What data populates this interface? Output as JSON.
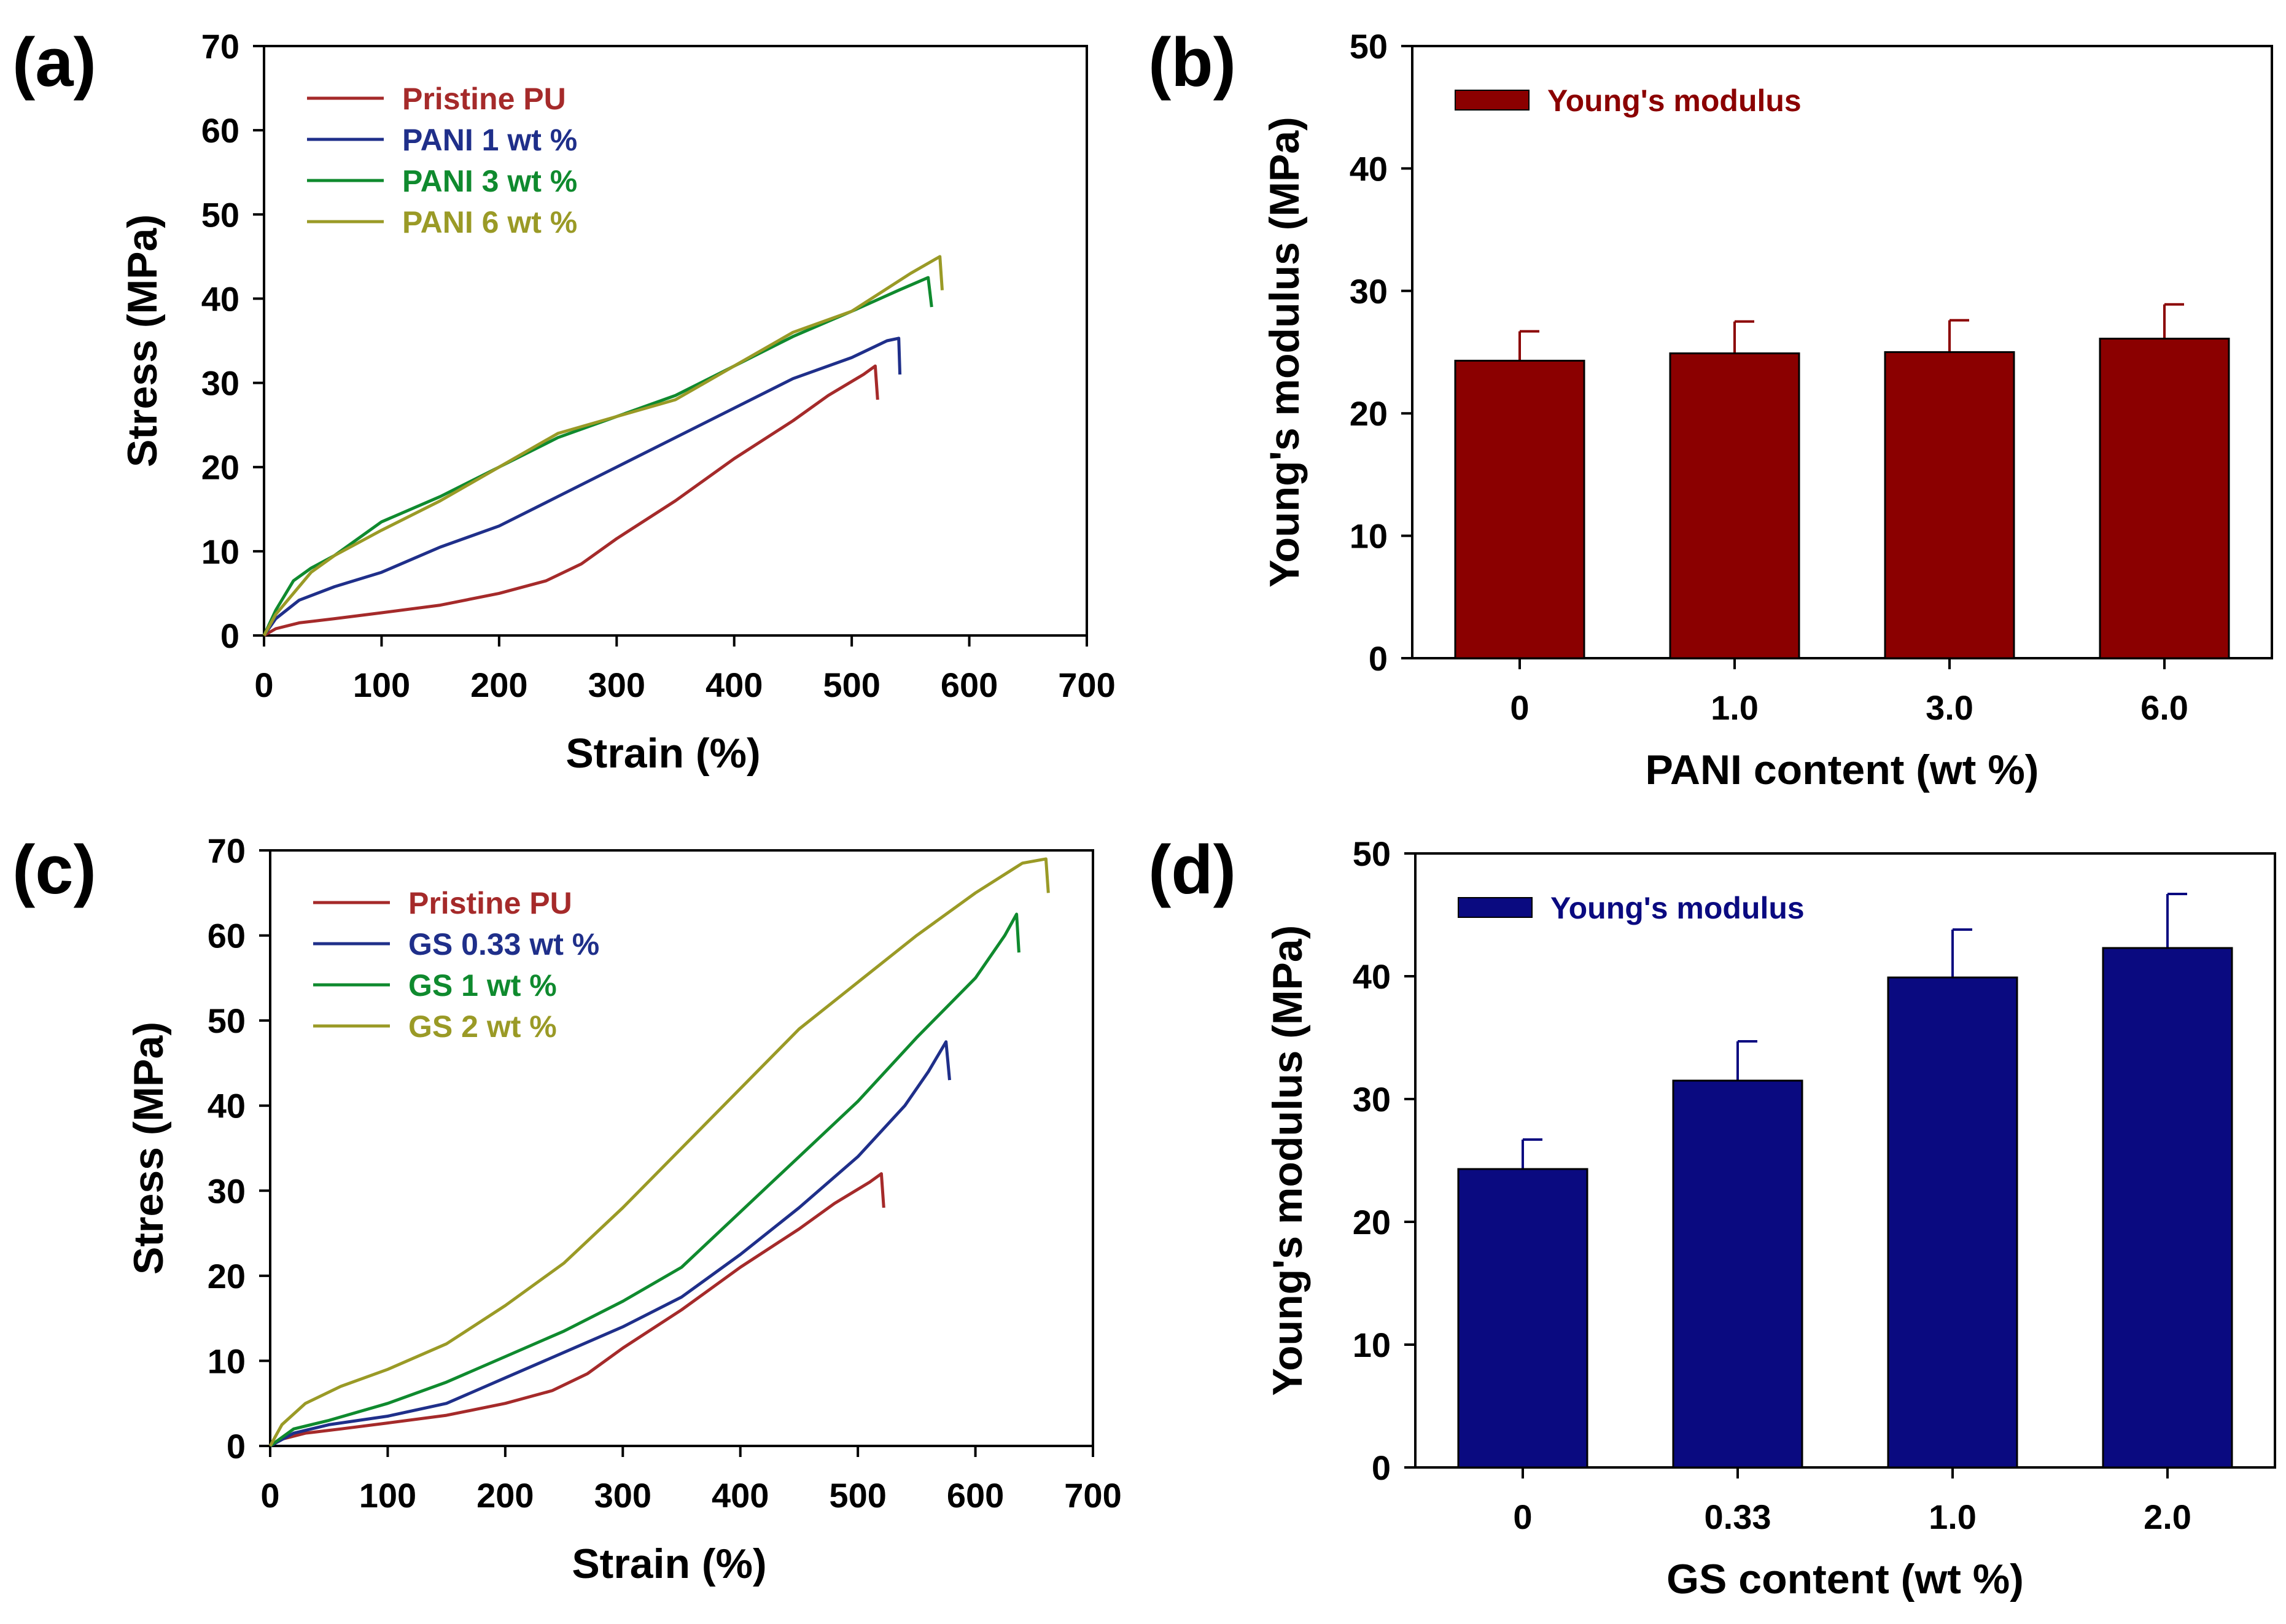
{
  "chart_data": [
    {
      "panel_label": "(a)",
      "type": "line",
      "xlabel": "Strain (%)",
      "ylabel": "Stress (MPa)",
      "xlim": [
        0,
        700
      ],
      "ylim": [
        0,
        70
      ],
      "xticks": [
        0,
        100,
        200,
        300,
        400,
        500,
        600,
        700
      ],
      "yticks": [
        0,
        10,
        20,
        30,
        40,
        50,
        60,
        70
      ],
      "legend_position": "top-left",
      "series": [
        {
          "name": "Pristine PU",
          "color": "#a52a2a",
          "points": [
            [
              0,
              0
            ],
            [
              10,
              0.8
            ],
            [
              30,
              1.5
            ],
            [
              60,
              2
            ],
            [
              100,
              2.7
            ],
            [
              150,
              3.6
            ],
            [
              200,
              5
            ],
            [
              240,
              6.5
            ],
            [
              270,
              8.5
            ],
            [
              300,
              11.5
            ],
            [
              350,
              16
            ],
            [
              400,
              21
            ],
            [
              450,
              25.5
            ],
            [
              480,
              28.5
            ],
            [
              510,
              31
            ],
            [
              520,
              32
            ],
            [
              522,
              28
            ]
          ]
        },
        {
          "name": "PANI 1 wt %",
          "color": "#1f2f8a",
          "points": [
            [
              0,
              0
            ],
            [
              10,
              2
            ],
            [
              30,
              4.2
            ],
            [
              60,
              5.8
            ],
            [
              100,
              7.5
            ],
            [
              150,
              10.5
            ],
            [
              200,
              13
            ],
            [
              250,
              16.5
            ],
            [
              300,
              20
            ],
            [
              350,
              23.5
            ],
            [
              400,
              27
            ],
            [
              450,
              30.5
            ],
            [
              500,
              33
            ],
            [
              530,
              35
            ],
            [
              540,
              35.3
            ],
            [
              541,
              31
            ]
          ]
        },
        {
          "name": "PANI 3 wt %",
          "color": "#0f8a2e",
          "points": [
            [
              0,
              0
            ],
            [
              10,
              3
            ],
            [
              25,
              6.5
            ],
            [
              40,
              8
            ],
            [
              60,
              9.5
            ],
            [
              100,
              13.5
            ],
            [
              150,
              16.5
            ],
            [
              200,
              20
            ],
            [
              250,
              23.5
            ],
            [
              300,
              26
            ],
            [
              350,
              28.5
            ],
            [
              400,
              32
            ],
            [
              450,
              35.5
            ],
            [
              500,
              38.5
            ],
            [
              540,
              41
            ],
            [
              565,
              42.5
            ],
            [
              568,
              39
            ]
          ]
        },
        {
          "name": "PANI 6 wt %",
          "color": "#9a9a26",
          "points": [
            [
              0,
              0
            ],
            [
              10,
              2.5
            ],
            [
              25,
              5
            ],
            [
              40,
              7.5
            ],
            [
              60,
              9.5
            ],
            [
              100,
              12.5
            ],
            [
              150,
              16
            ],
            [
              200,
              20
            ],
            [
              250,
              24
            ],
            [
              300,
              26
            ],
            [
              350,
              28
            ],
            [
              400,
              32
            ],
            [
              450,
              36
            ],
            [
              500,
              38.5
            ],
            [
              550,
              43
            ],
            [
              575,
              45
            ],
            [
              577,
              41
            ]
          ]
        }
      ]
    },
    {
      "panel_label": "(b)",
      "type": "bar",
      "xlabel": "PANI content (wt %)",
      "ylabel": "Young's modulus (MPa)",
      "categories": [
        "0",
        "1.0",
        "3.0",
        "6.0"
      ],
      "values": [
        24.3,
        24.9,
        25.0,
        26.1
      ],
      "errors": [
        2.4,
        2.6,
        2.6,
        2.8
      ],
      "ylim": [
        0,
        50
      ],
      "yticks": [
        0,
        10,
        20,
        30,
        40,
        50
      ],
      "legend": "Young's modulus",
      "legend_position": "top-left",
      "color": "#8b0000"
    },
    {
      "panel_label": "(c)",
      "type": "line",
      "xlabel": "Strain (%)",
      "ylabel": "Stress (MPa)",
      "xlim": [
        0,
        700
      ],
      "ylim": [
        0,
        70
      ],
      "xticks": [
        0,
        100,
        200,
        300,
        400,
        500,
        600,
        700
      ],
      "yticks": [
        0,
        10,
        20,
        30,
        40,
        50,
        60,
        70
      ],
      "legend_position": "top-left",
      "series": [
        {
          "name": "Pristine PU",
          "color": "#a52a2a",
          "points": [
            [
              0,
              0
            ],
            [
              10,
              0.8
            ],
            [
              30,
              1.5
            ],
            [
              60,
              2
            ],
            [
              100,
              2.7
            ],
            [
              150,
              3.6
            ],
            [
              200,
              5
            ],
            [
              240,
              6.5
            ],
            [
              270,
              8.5
            ],
            [
              300,
              11.5
            ],
            [
              350,
              16
            ],
            [
              400,
              21
            ],
            [
              450,
              25.5
            ],
            [
              480,
              28.5
            ],
            [
              510,
              31
            ],
            [
              520,
              32
            ],
            [
              522,
              28
            ]
          ]
        },
        {
          "name": "GS 0.33 wt %",
          "color": "#1f2f8a",
          "points": [
            [
              0,
              0
            ],
            [
              20,
              1.5
            ],
            [
              50,
              2.5
            ],
            [
              100,
              3.5
            ],
            [
              150,
              5
            ],
            [
              200,
              8
            ],
            [
              250,
              11
            ],
            [
              300,
              14
            ],
            [
              350,
              17.5
            ],
            [
              400,
              22.5
            ],
            [
              450,
              28
            ],
            [
              500,
              34
            ],
            [
              540,
              40
            ],
            [
              560,
              44
            ],
            [
              575,
              47.5
            ],
            [
              578,
              43
            ]
          ]
        },
        {
          "name": "GS 1 wt %",
          "color": "#0f8a2e",
          "points": [
            [
              0,
              0
            ],
            [
              20,
              2
            ],
            [
              50,
              3
            ],
            [
              100,
              5
            ],
            [
              150,
              7.5
            ],
            [
              200,
              10.5
            ],
            [
              250,
              13.5
            ],
            [
              300,
              17
            ],
            [
              350,
              21
            ],
            [
              400,
              27.5
            ],
            [
              450,
              34
            ],
            [
              500,
              40.5
            ],
            [
              550,
              48
            ],
            [
              600,
              55
            ],
            [
              625,
              60
            ],
            [
              635,
              62.5
            ],
            [
              637,
              58
            ]
          ]
        },
        {
          "name": "GS 2 wt %",
          "color": "#9a9a26",
          "points": [
            [
              0,
              0
            ],
            [
              10,
              2.5
            ],
            [
              30,
              5
            ],
            [
              60,
              7
            ],
            [
              100,
              9
            ],
            [
              150,
              12
            ],
            [
              200,
              16.5
            ],
            [
              250,
              21.5
            ],
            [
              300,
              28
            ],
            [
              350,
              35
            ],
            [
              400,
              42
            ],
            [
              450,
              49
            ],
            [
              500,
              54.5
            ],
            [
              550,
              60
            ],
            [
              600,
              65
            ],
            [
              640,
              68.5
            ],
            [
              660,
              69
            ],
            [
              662,
              65
            ]
          ]
        }
      ]
    },
    {
      "panel_label": "(d)",
      "type": "bar",
      "xlabel": "GS content (wt %)",
      "ylabel": "Young's modulus (MPa)",
      "categories": [
        "0",
        "0.33",
        "1.0",
        "2.0"
      ],
      "values": [
        24.3,
        31.5,
        39.9,
        42.3
      ],
      "errors": [
        2.4,
        3.2,
        3.9,
        4.4
      ],
      "ylim": [
        0,
        50
      ],
      "yticks": [
        0,
        10,
        20,
        30,
        40,
        50
      ],
      "legend": "Young's modulus",
      "legend_position": "top-left",
      "color": "#0a0a80"
    }
  ]
}
